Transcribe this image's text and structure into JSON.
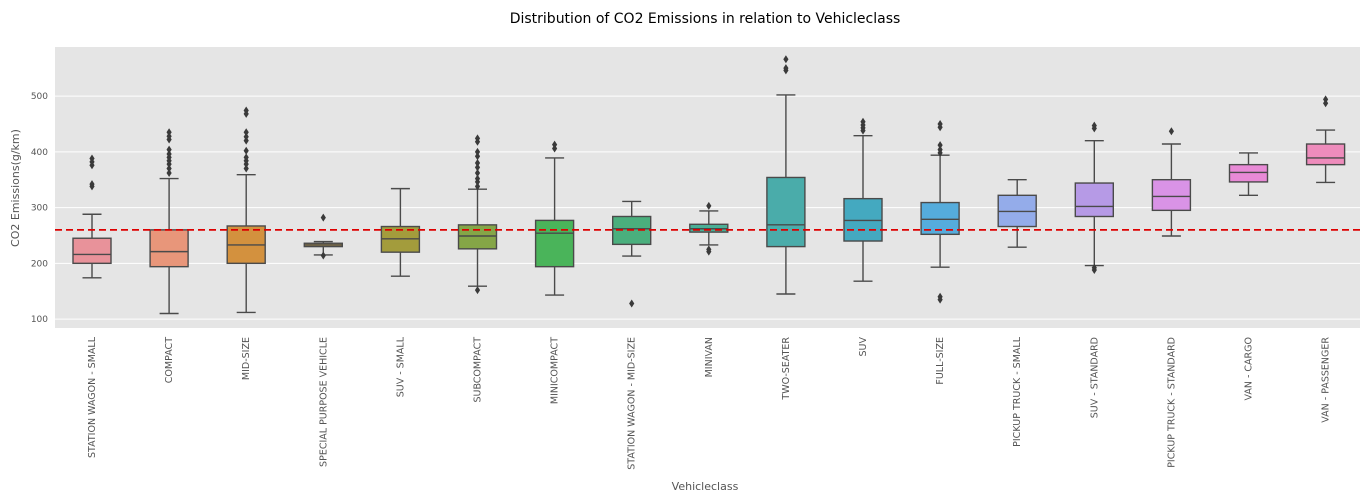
{
  "chart_data": {
    "type": "box",
    "title": "Distribution of CO2 Emissions in relation to Vehicleclass",
    "xlabel": "Vehicleclass",
    "ylabel": "CO2 Emissions(g/km)",
    "ylim": [
      84,
      588
    ],
    "yticks": [
      100,
      200,
      300,
      400,
      500
    ],
    "grid": true,
    "reference_line": {
      "value": 260,
      "color": "#dd0000",
      "style": "dashed"
    },
    "categories": [
      "STATION WAGON - SMALL",
      "COMPACT",
      "MID-SIZE",
      "SPECIAL PURPOSE VEHICLE",
      "SUV - SMALL",
      "SUBCOMPACT",
      "MINICOMPACT",
      "STATION WAGON - MID-SIZE",
      "MINIVAN",
      "TWO-SEATER",
      "SUV",
      "FULL-SIZE",
      "PICKUP TRUCK - SMALL",
      "SUV - STANDARD",
      "PICKUP TRUCK - STANDARD",
      "VAN - CARGO",
      "VAN - PASSENGER"
    ],
    "boxes": [
      {
        "min": 174,
        "q1": 200,
        "median": 216,
        "q3": 245,
        "max": 288,
        "outliers": [
          338,
          342,
          376,
          382,
          388
        ],
        "color": "#e8929a"
      },
      {
        "min": 110,
        "q1": 194,
        "median": 221,
        "q3": 260,
        "max": 352,
        "outliers": [
          362,
          370,
          378,
          384,
          390,
          396,
          404,
          422,
          428,
          435
        ],
        "color": "#e8967a"
      },
      {
        "min": 112,
        "q1": 200,
        "median": 233,
        "q3": 267,
        "max": 359,
        "outliers": [
          370,
          378,
          384,
          390,
          402,
          420,
          427,
          435,
          468,
          474
        ],
        "color": "#d3913e"
      },
      {
        "min": 215,
        "q1": 230,
        "median": 233,
        "q3": 236,
        "max": 239,
        "outliers": [
          214,
          282
        ],
        "color": "#c09a42"
      },
      {
        "min": 177,
        "q1": 220,
        "median": 244,
        "q3": 266,
        "max": 334,
        "outliers": [],
        "color": "#a39c3c"
      },
      {
        "min": 159,
        "q1": 226,
        "median": 249,
        "q3": 269,
        "max": 333,
        "outliers": [
          152,
          338,
          346,
          352,
          362,
          372,
          380,
          392,
          400,
          418,
          424
        ],
        "color": "#85a647"
      },
      {
        "min": 143,
        "q1": 194,
        "median": 254,
        "q3": 277,
        "max": 389,
        "outliers": [
          406,
          413
        ],
        "color": "#4ab45a"
      },
      {
        "min": 213,
        "q1": 234,
        "median": 262,
        "q3": 284,
        "max": 311,
        "outliers": [
          128
        ],
        "color": "#4aaf7d"
      },
      {
        "min": 233,
        "q1": 256,
        "median": 262,
        "q3": 270,
        "max": 294,
        "outliers": [
          221,
          225,
          303
        ],
        "color": "#4aaf96"
      },
      {
        "min": 145,
        "q1": 230,
        "median": 269,
        "q3": 354,
        "max": 502,
        "outliers": [
          546,
          550,
          566
        ],
        "color": "#4aacaa"
      },
      {
        "min": 168,
        "q1": 240,
        "median": 277,
        "q3": 316,
        "max": 429,
        "outliers": [
          438,
          443,
          448,
          454
        ],
        "color": "#44a9c0"
      },
      {
        "min": 193,
        "q1": 252,
        "median": 279,
        "q3": 309,
        "max": 394,
        "outliers": [
          135,
          140,
          398,
          404,
          412,
          444,
          450
        ],
        "color": "#55acdc"
      },
      {
        "min": 229,
        "q1": 266,
        "median": 293,
        "q3": 322,
        "max": 350,
        "outliers": [],
        "color": "#94acea"
      },
      {
        "min": 196,
        "q1": 284,
        "median": 302,
        "q3": 344,
        "max": 420,
        "outliers": [
          188,
          192,
          442,
          447
        ],
        "color": "#b69ae6"
      },
      {
        "min": 249,
        "q1": 295,
        "median": 320,
        "q3": 350,
        "max": 414,
        "outliers": [
          437
        ],
        "color": "#d993e6"
      },
      {
        "min": 322,
        "q1": 346,
        "median": 363,
        "q3": 377,
        "max": 398,
        "outliers": [],
        "color": "#e88ad6"
      },
      {
        "min": 345,
        "q1": 377,
        "median": 389,
        "q3": 414,
        "max": 439,
        "outliers": [
          487,
          494
        ],
        "color": "#ee8cbc"
      }
    ]
  }
}
